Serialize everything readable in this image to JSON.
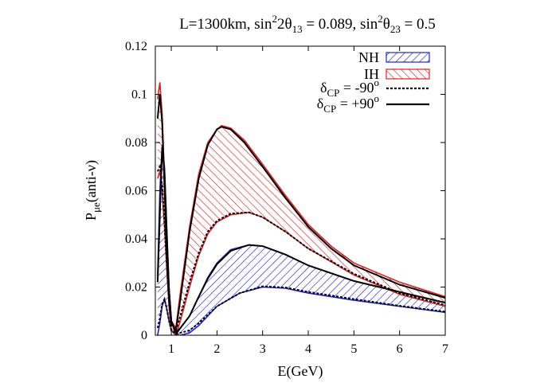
{
  "chart_data": {
    "type": "line",
    "title": {
      "prefix": "L=1300km, sin",
      "sq1": "2",
      "t13": "2θ",
      "t13sub": "13",
      "v13": " = 0.089, sin",
      "sq2": "2",
      "t23": "θ",
      "t23sub": "23",
      "v23": " = 0.5"
    },
    "xlabel": "E(GeV)",
    "ylabel": {
      "main": "P",
      "sub": "μe",
      "rest": "(anti-ν)"
    },
    "xlim": [
      0.65,
      7
    ],
    "ylim": [
      0,
      0.12
    ],
    "xticks": [
      "1",
      "2",
      "3",
      "4",
      "5",
      "6",
      "7"
    ],
    "yticks": [
      "0",
      "0.02",
      "0.04",
      "0.06",
      "0.08",
      "0.1",
      "0.12"
    ],
    "legend_position": "top-right",
    "legend": [
      {
        "label": "NH",
        "style": "blue-hatched-band"
      },
      {
        "label": "IH",
        "style": "red-hatched-band"
      },
      {
        "label": "δ",
        "sub": "CP",
        "rest": " = -90",
        "sup": "o",
        "style": "black-dashed"
      },
      {
        "label": "δ",
        "sub": "CP",
        "rest": " = +90",
        "sup": "o",
        "style": "black-solid"
      }
    ],
    "colors": {
      "NH": "#2222cc",
      "IH": "#e02020",
      "curves": "#000000"
    },
    "bands": [
      {
        "name": "NH",
        "upper": [
          [
            0.7,
            0.025
          ],
          [
            0.75,
            0.06
          ],
          [
            0.8,
            0.079
          ],
          [
            0.85,
            0.07
          ],
          [
            0.9,
            0.045
          ],
          [
            0.95,
            0.02
          ],
          [
            1.0,
            0.006
          ],
          [
            1.1,
            0.0
          ],
          [
            1.2,
            0.003
          ],
          [
            1.4,
            0.008
          ],
          [
            1.6,
            0.016
          ],
          [
            1.8,
            0.024
          ],
          [
            2.0,
            0.03
          ],
          [
            2.3,
            0.0355
          ],
          [
            2.7,
            0.0375
          ],
          [
            3.0,
            0.037
          ],
          [
            3.5,
            0.0335
          ],
          [
            4.0,
            0.029
          ],
          [
            5.0,
            0.0225
          ],
          [
            6.0,
            0.018
          ],
          [
            7.0,
            0.0135
          ]
        ],
        "lower": [
          [
            0.7,
            0.0
          ],
          [
            0.75,
            0.005
          ],
          [
            0.8,
            0.012
          ],
          [
            0.85,
            0.015
          ],
          [
            0.9,
            0.011
          ],
          [
            0.95,
            0.006
          ],
          [
            1.0,
            0.002
          ],
          [
            1.1,
            0.0
          ],
          [
            1.2,
            0.0
          ],
          [
            1.4,
            0.001
          ],
          [
            1.6,
            0.004
          ],
          [
            1.8,
            0.008
          ],
          [
            2.0,
            0.012
          ],
          [
            2.5,
            0.0175
          ],
          [
            3.0,
            0.02
          ],
          [
            3.5,
            0.0195
          ],
          [
            4.0,
            0.0175
          ],
          [
            5.0,
            0.0145
          ],
          [
            6.0,
            0.012
          ],
          [
            7.0,
            0.0095
          ]
        ]
      },
      {
        "name": "IH",
        "upper": [
          [
            0.7,
            0.098
          ],
          [
            0.75,
            0.105
          ],
          [
            0.8,
            0.092
          ],
          [
            0.85,
            0.065
          ],
          [
            0.9,
            0.04
          ],
          [
            0.95,
            0.018
          ],
          [
            1.0,
            0.006
          ],
          [
            1.1,
            0.003
          ],
          [
            1.2,
            0.018
          ],
          [
            1.4,
            0.045
          ],
          [
            1.6,
            0.067
          ],
          [
            1.8,
            0.08
          ],
          [
            2.0,
            0.0855
          ],
          [
            2.1,
            0.087
          ],
          [
            2.3,
            0.086
          ],
          [
            2.6,
            0.081
          ],
          [
            3.0,
            0.071
          ],
          [
            3.5,
            0.058
          ],
          [
            4.0,
            0.046
          ],
          [
            4.5,
            0.037
          ],
          [
            5.0,
            0.03
          ],
          [
            6.0,
            0.022
          ],
          [
            7.0,
            0.016
          ]
        ],
        "lower": [
          [
            0.7,
            0.065
          ],
          [
            0.75,
            0.068
          ],
          [
            0.8,
            0.06
          ],
          [
            0.85,
            0.045
          ],
          [
            0.9,
            0.028
          ],
          [
            0.95,
            0.012
          ],
          [
            1.0,
            0.002
          ],
          [
            1.1,
            0.0
          ],
          [
            1.2,
            0.006
          ],
          [
            1.4,
            0.02
          ],
          [
            1.6,
            0.033
          ],
          [
            1.8,
            0.042
          ],
          [
            2.0,
            0.047
          ],
          [
            2.3,
            0.05
          ],
          [
            2.7,
            0.051
          ],
          [
            3.0,
            0.049
          ],
          [
            3.5,
            0.043
          ],
          [
            4.0,
            0.036
          ],
          [
            5.0,
            0.025
          ],
          [
            6.0,
            0.017
          ],
          [
            7.0,
            0.012
          ]
        ]
      }
    ],
    "curves": [
      {
        "group": "IH",
        "style": "solid",
        "points": [
          [
            0.7,
            0.09
          ],
          [
            0.75,
            0.1
          ],
          [
            0.8,
            0.088
          ],
          [
            0.85,
            0.062
          ],
          [
            0.9,
            0.035
          ],
          [
            0.95,
            0.015
          ],
          [
            1.0,
            0.005
          ],
          [
            1.1,
            0.002
          ],
          [
            1.2,
            0.015
          ],
          [
            1.4,
            0.043
          ],
          [
            1.6,
            0.065
          ],
          [
            1.8,
            0.079
          ],
          [
            2.0,
            0.0855
          ],
          [
            2.1,
            0.0865
          ],
          [
            2.3,
            0.0855
          ],
          [
            2.6,
            0.08
          ],
          [
            3.0,
            0.07
          ],
          [
            3.5,
            0.057
          ],
          [
            4.0,
            0.045
          ],
          [
            4.5,
            0.036
          ],
          [
            5.0,
            0.029
          ],
          [
            6.0,
            0.021
          ],
          [
            7.0,
            0.0155
          ]
        ]
      },
      {
        "group": "IH",
        "style": "dashed",
        "points": [
          [
            0.7,
            0.068
          ],
          [
            0.75,
            0.07
          ],
          [
            0.8,
            0.062
          ],
          [
            0.85,
            0.047
          ],
          [
            0.9,
            0.03
          ],
          [
            0.95,
            0.014
          ],
          [
            1.0,
            0.004
          ],
          [
            1.1,
            0.002
          ],
          [
            1.2,
            0.008
          ],
          [
            1.4,
            0.022
          ],
          [
            1.6,
            0.034
          ],
          [
            1.8,
            0.043
          ],
          [
            2.0,
            0.0475
          ],
          [
            2.3,
            0.0505
          ],
          [
            2.7,
            0.051
          ],
          [
            3.0,
            0.049
          ],
          [
            3.5,
            0.043
          ],
          [
            4.0,
            0.036
          ],
          [
            5.0,
            0.0255
          ],
          [
            6.0,
            0.0175
          ],
          [
            7.0,
            0.0125
          ]
        ]
      },
      {
        "group": "NH",
        "style": "solid",
        "points": [
          [
            0.7,
            0.022
          ],
          [
            0.75,
            0.05
          ],
          [
            0.8,
            0.078
          ],
          [
            0.85,
            0.068
          ],
          [
            0.9,
            0.043
          ],
          [
            0.95,
            0.019
          ],
          [
            1.0,
            0.006
          ],
          [
            1.1,
            0.001
          ],
          [
            1.2,
            0.003
          ],
          [
            1.4,
            0.008
          ],
          [
            1.6,
            0.016
          ],
          [
            1.8,
            0.0235
          ],
          [
            2.0,
            0.0295
          ],
          [
            2.3,
            0.035
          ],
          [
            2.7,
            0.0375
          ],
          [
            3.0,
            0.037
          ],
          [
            3.5,
            0.0335
          ],
          [
            4.0,
            0.029
          ],
          [
            5.0,
            0.0225
          ],
          [
            6.0,
            0.018
          ],
          [
            7.0,
            0.0135
          ]
        ]
      },
      {
        "group": "NH",
        "style": "dashed",
        "points": [
          [
            0.7,
            0.003
          ],
          [
            0.75,
            0.007
          ],
          [
            0.8,
            0.013
          ],
          [
            0.85,
            0.015
          ],
          [
            0.9,
            0.011
          ],
          [
            0.95,
            0.006
          ],
          [
            1.0,
            0.002
          ],
          [
            1.1,
            0.0005
          ],
          [
            1.2,
            0.001
          ],
          [
            1.4,
            0.002
          ],
          [
            1.6,
            0.005
          ],
          [
            1.8,
            0.0085
          ],
          [
            2.0,
            0.012
          ],
          [
            2.5,
            0.0175
          ],
          [
            3.0,
            0.0203
          ],
          [
            3.5,
            0.0198
          ],
          [
            4.0,
            0.018
          ],
          [
            5.0,
            0.015
          ],
          [
            6.0,
            0.0122
          ],
          [
            7.0,
            0.0098
          ]
        ]
      }
    ]
  }
}
